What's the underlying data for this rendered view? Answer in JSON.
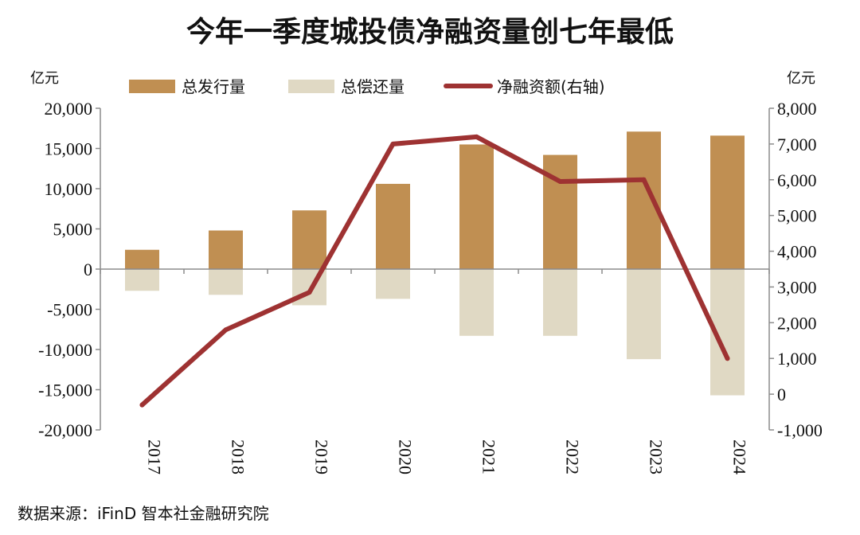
{
  "chart_data": {
    "type": "bar+line",
    "title": "今年一季度城投债净融资量创七年最低",
    "categories": [
      "2017",
      "2018",
      "2019",
      "2020",
      "2021",
      "2022",
      "2023",
      "2024"
    ],
    "series": [
      {
        "name": "总发行量",
        "type": "bar",
        "axis": "left",
        "color": "#c08f52",
        "values": [
          2400,
          4800,
          7300,
          10600,
          15500,
          14200,
          17100,
          16600
        ]
      },
      {
        "name": "总偿还量",
        "type": "bar",
        "axis": "left",
        "color": "#e0d9c4",
        "values": [
          -2700,
          -3200,
          -4500,
          -3700,
          -8300,
          -8300,
          -11200,
          -15700
        ]
      },
      {
        "name": "净融资额(右轴)",
        "type": "line",
        "axis": "right",
        "color": "#9e3232",
        "values": [
          -300,
          1800,
          2850,
          7000,
          7200,
          5950,
          6000,
          1000
        ]
      }
    ],
    "y_left": {
      "unit": "亿元",
      "min": -20000,
      "max": 20000,
      "ticks": [
        "20,000",
        "15,000",
        "10,000",
        "5,000",
        "0",
        "-5,000",
        "-10,000",
        "-15,000",
        "-20,000"
      ]
    },
    "y_right": {
      "unit": "亿元",
      "min": -1000,
      "max": 8000,
      "ticks": [
        "8,000",
        "7,000",
        "6,000",
        "5,000",
        "4,000",
        "3,000",
        "2,000",
        "1,000",
        "0",
        "-1,000"
      ]
    },
    "legend_position": "top",
    "grid": false
  },
  "source": "数据来源：iFinD  智本社金融研究院"
}
